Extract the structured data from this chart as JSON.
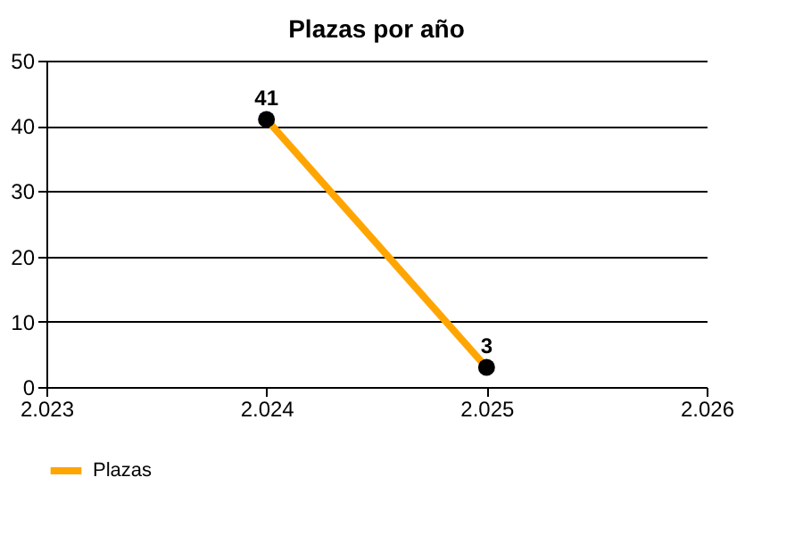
{
  "chart_data": {
    "type": "line",
    "title": "Plazas por año",
    "x": [
      2024,
      2025
    ],
    "series": [
      {
        "name": "Plazas",
        "color": "#ffa500",
        "values": [
          41,
          3
        ]
      }
    ],
    "xlim": [
      2023,
      2026
    ],
    "xticks": [
      {
        "value": 2023,
        "label": "2.023"
      },
      {
        "value": 2024,
        "label": "2.024"
      },
      {
        "value": 2025,
        "label": "2.025"
      },
      {
        "value": 2026,
        "label": "2.026"
      }
    ],
    "ylim": [
      0,
      50
    ],
    "yticks": [
      0,
      10,
      20,
      30,
      40,
      50
    ],
    "grid": "y",
    "legend": "bottom left",
    "marker": "circle",
    "line_style": "solid",
    "data_labels": true
  }
}
